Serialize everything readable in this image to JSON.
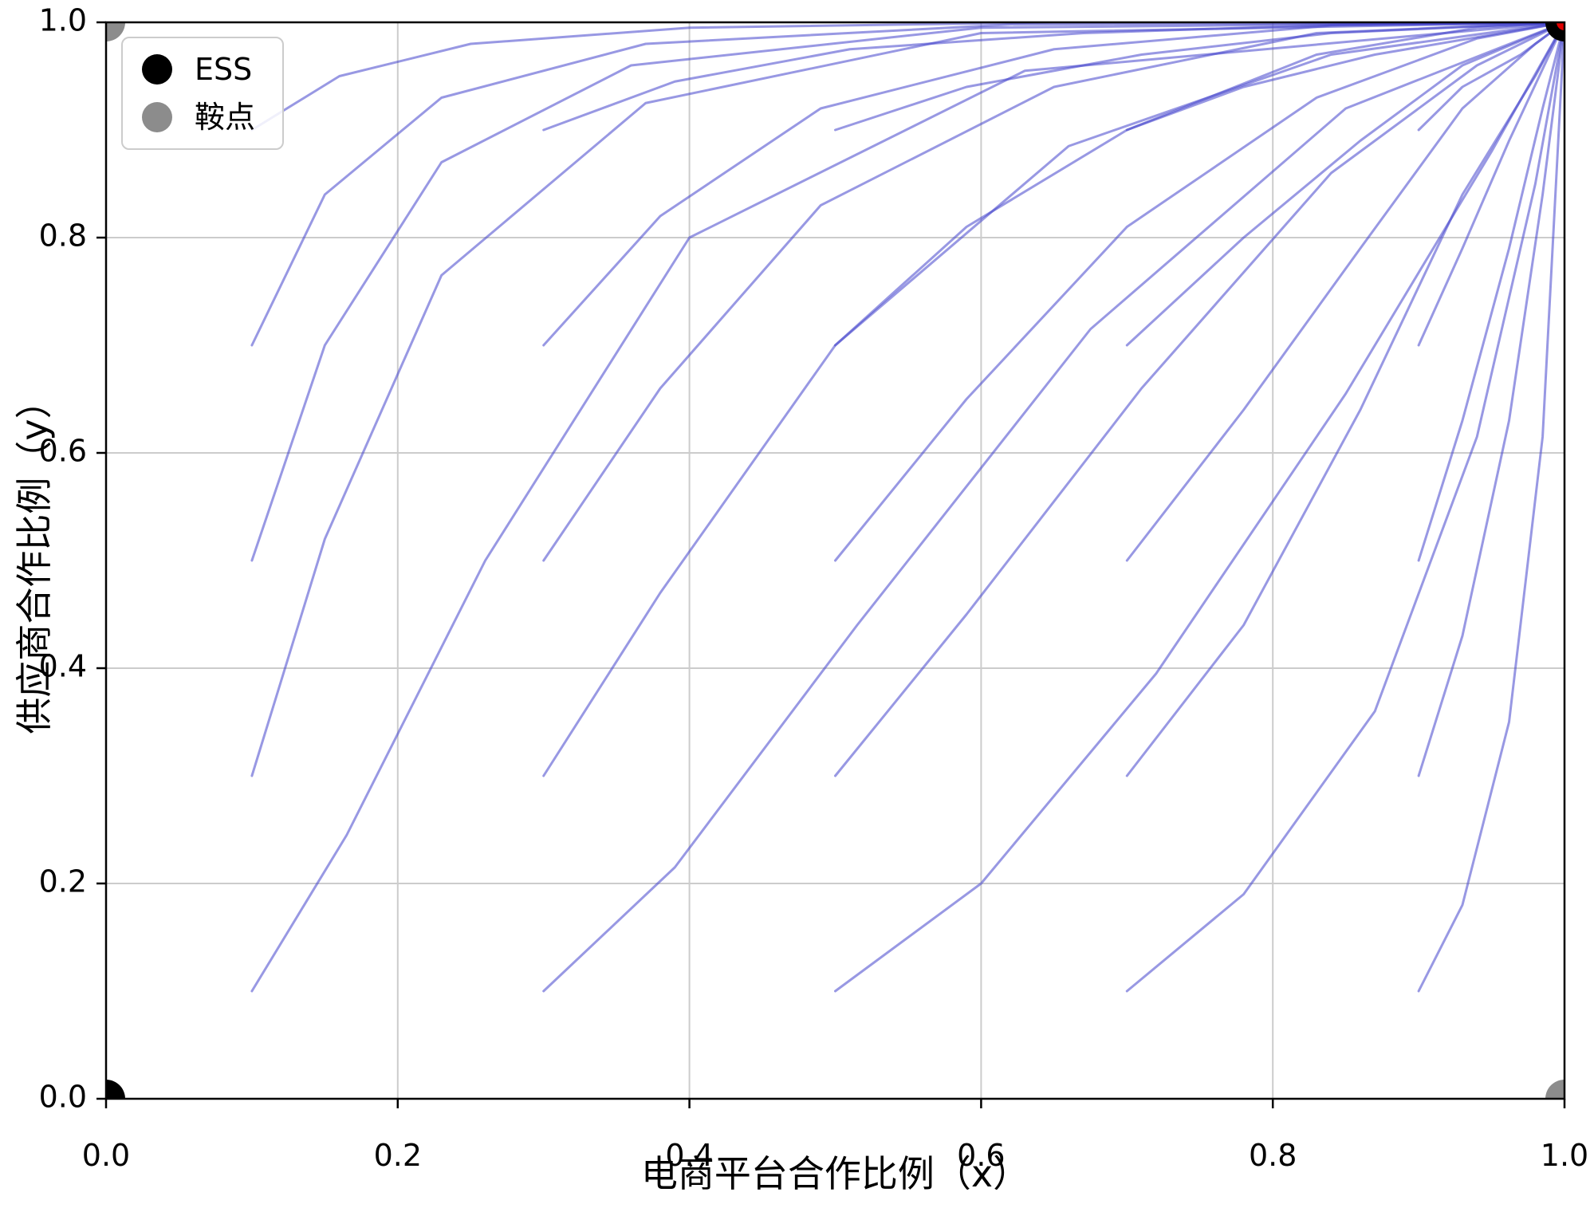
{
  "chart_data": {
    "type": "line",
    "title": "",
    "xlabel": "电商平台合作比例（x）",
    "ylabel": "供应商合作比例（y）",
    "xlim": [
      0,
      1
    ],
    "ylim": [
      0,
      1
    ],
    "xticks": [
      0.0,
      0.2,
      0.4,
      0.6,
      0.8,
      1.0
    ],
    "yticks": [
      0.0,
      0.2,
      0.4,
      0.6,
      0.8,
      1.0
    ],
    "xtick_labels": [
      "0.0",
      "0.2",
      "0.4",
      "0.6",
      "0.8",
      "1.0"
    ],
    "ytick_labels": [
      "0.0",
      "0.2",
      "0.4",
      "0.6",
      "0.8",
      "1.0"
    ],
    "grid": true,
    "grid_color": "#cccccc",
    "spine_color": "#000000",
    "trajectory_color": "#4444cc",
    "trajectory_opacity": 0.55,
    "trajectory_width": 3,
    "legend": {
      "position": "upper-left",
      "items": [
        {
          "label": "ESS",
          "color": "#000000",
          "marker": "circle"
        },
        {
          "label": "鞍点",
          "color": "#8c8c8c",
          "marker": "circle"
        }
      ]
    },
    "ess_points": [
      [
        0,
        0
      ],
      [
        1,
        1
      ]
    ],
    "saddle_points": [
      [
        0,
        1
      ],
      [
        1,
        0
      ]
    ],
    "ess_color": "#000000",
    "saddle_color": "#8c8c8c",
    "highlight_point": {
      "xy": [
        1,
        1
      ],
      "color": "#e00000"
    },
    "trajectories": [
      [
        [
          0.1,
          0.1
        ],
        [
          0.165,
          0.245
        ],
        [
          0.26,
          0.5
        ],
        [
          0.4,
          0.8
        ],
        [
          0.63,
          0.955
        ],
        [
          1,
          1
        ]
      ],
      [
        [
          0.3,
          0.1
        ],
        [
          0.39,
          0.215
        ],
        [
          0.515,
          0.44
        ],
        [
          0.675,
          0.715
        ],
        [
          0.85,
          0.92
        ],
        [
          1,
          1
        ]
      ],
      [
        [
          0.5,
          0.1
        ],
        [
          0.6,
          0.2
        ],
        [
          0.72,
          0.395
        ],
        [
          0.85,
          0.655
        ],
        [
          0.95,
          0.88
        ],
        [
          1,
          1
        ]
      ],
      [
        [
          0.7,
          0.1
        ],
        [
          0.78,
          0.19
        ],
        [
          0.87,
          0.36
        ],
        [
          0.94,
          0.615
        ],
        [
          0.98,
          0.85
        ],
        [
          1,
          1
        ]
      ],
      [
        [
          0.9,
          0.1
        ],
        [
          0.93,
          0.18
        ],
        [
          0.962,
          0.35
        ],
        [
          0.985,
          0.615
        ],
        [
          1,
          1
        ]
      ],
      [
        [
          0.1,
          0.3
        ],
        [
          0.15,
          0.52
        ],
        [
          0.23,
          0.765
        ],
        [
          0.37,
          0.925
        ],
        [
          0.6,
          0.99
        ],
        [
          1,
          1
        ]
      ],
      [
        [
          0.3,
          0.3
        ],
        [
          0.38,
          0.47
        ],
        [
          0.5,
          0.7
        ],
        [
          0.66,
          0.885
        ],
        [
          0.84,
          0.97
        ],
        [
          1,
          1
        ]
      ],
      [
        [
          0.5,
          0.3
        ],
        [
          0.59,
          0.45
        ],
        [
          0.71,
          0.66
        ],
        [
          0.84,
          0.86
        ],
        [
          0.94,
          0.96
        ],
        [
          1,
          1
        ]
      ],
      [
        [
          0.7,
          0.3
        ],
        [
          0.78,
          0.44
        ],
        [
          0.86,
          0.64
        ],
        [
          0.93,
          0.84
        ],
        [
          0.98,
          0.95
        ],
        [
          1,
          1
        ]
      ],
      [
        [
          0.9,
          0.3
        ],
        [
          0.93,
          0.43
        ],
        [
          0.962,
          0.63
        ],
        [
          0.985,
          0.84
        ],
        [
          1,
          1
        ]
      ],
      [
        [
          0.1,
          0.5
        ],
        [
          0.15,
          0.7
        ],
        [
          0.23,
          0.87
        ],
        [
          0.36,
          0.96
        ],
        [
          0.6,
          0.995
        ],
        [
          1,
          1
        ]
      ],
      [
        [
          0.3,
          0.5
        ],
        [
          0.38,
          0.66
        ],
        [
          0.49,
          0.83
        ],
        [
          0.65,
          0.94
        ],
        [
          0.83,
          0.99
        ],
        [
          1,
          1
        ]
      ],
      [
        [
          0.5,
          0.5
        ],
        [
          0.59,
          0.65
        ],
        [
          0.7,
          0.81
        ],
        [
          0.83,
          0.93
        ],
        [
          0.94,
          0.985
        ],
        [
          1,
          1
        ]
      ],
      [
        [
          0.7,
          0.5
        ],
        [
          0.78,
          0.64
        ],
        [
          0.86,
          0.79
        ],
        [
          0.93,
          0.92
        ],
        [
          0.98,
          0.98
        ],
        [
          1,
          1
        ]
      ],
      [
        [
          0.9,
          0.5
        ],
        [
          0.93,
          0.63
        ],
        [
          0.962,
          0.79
        ],
        [
          0.985,
          0.92
        ],
        [
          1,
          1
        ]
      ],
      [
        [
          0.1,
          0.7
        ],
        [
          0.15,
          0.84
        ],
        [
          0.23,
          0.93
        ],
        [
          0.37,
          0.98
        ],
        [
          0.62,
          0.998
        ],
        [
          1,
          1
        ]
      ],
      [
        [
          0.3,
          0.7
        ],
        [
          0.38,
          0.82
        ],
        [
          0.49,
          0.92
        ],
        [
          0.65,
          0.975
        ],
        [
          0.84,
          0.997
        ],
        [
          1,
          1
        ]
      ],
      [
        [
          0.5,
          0.7
        ],
        [
          0.59,
          0.81
        ],
        [
          0.7,
          0.9
        ],
        [
          0.83,
          0.97
        ],
        [
          0.94,
          0.995
        ],
        [
          1,
          1
        ]
      ],
      [
        [
          0.7,
          0.7
        ],
        [
          0.78,
          0.8
        ],
        [
          0.86,
          0.89
        ],
        [
          0.93,
          0.96
        ],
        [
          1,
          1
        ]
      ],
      [
        [
          0.9,
          0.7
        ],
        [
          0.93,
          0.79
        ],
        [
          0.962,
          0.89
        ],
        [
          1,
          1
        ]
      ],
      [
        [
          0.1,
          0.9
        ],
        [
          0.16,
          0.95
        ],
        [
          0.25,
          0.98
        ],
        [
          0.4,
          0.995
        ],
        [
          0.65,
          1.0
        ],
        [
          1,
          1
        ]
      ],
      [
        [
          0.3,
          0.9
        ],
        [
          0.39,
          0.945
        ],
        [
          0.51,
          0.975
        ],
        [
          0.67,
          0.99
        ],
        [
          0.85,
          0.998
        ],
        [
          1,
          1
        ]
      ],
      [
        [
          0.5,
          0.9
        ],
        [
          0.59,
          0.94
        ],
        [
          0.71,
          0.97
        ],
        [
          0.84,
          0.99
        ],
        [
          1,
          1
        ]
      ],
      [
        [
          0.7,
          0.9
        ],
        [
          0.78,
          0.94
        ],
        [
          0.87,
          0.97
        ],
        [
          1,
          1
        ]
      ],
      [
        [
          0.9,
          0.9
        ],
        [
          0.93,
          0.94
        ],
        [
          0.97,
          0.97
        ],
        [
          1,
          1
        ]
      ]
    ]
  }
}
